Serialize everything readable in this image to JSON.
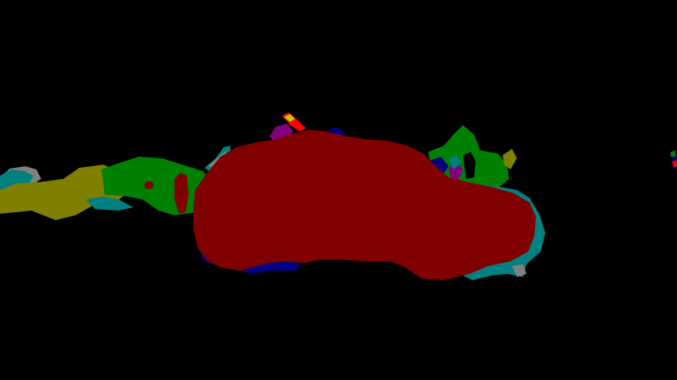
{
  "image": {
    "description_kind": "semantic-segmentation-mask",
    "background_color": "#000000"
  },
  "palette": {
    "maroon": "#800000",
    "green": "#008000",
    "olive": "#808000",
    "navy": "#000080",
    "purple": "#800080",
    "teal": "#008080",
    "gray": "#808080",
    "red": "#ff0000",
    "yellow": "#c8c800"
  }
}
